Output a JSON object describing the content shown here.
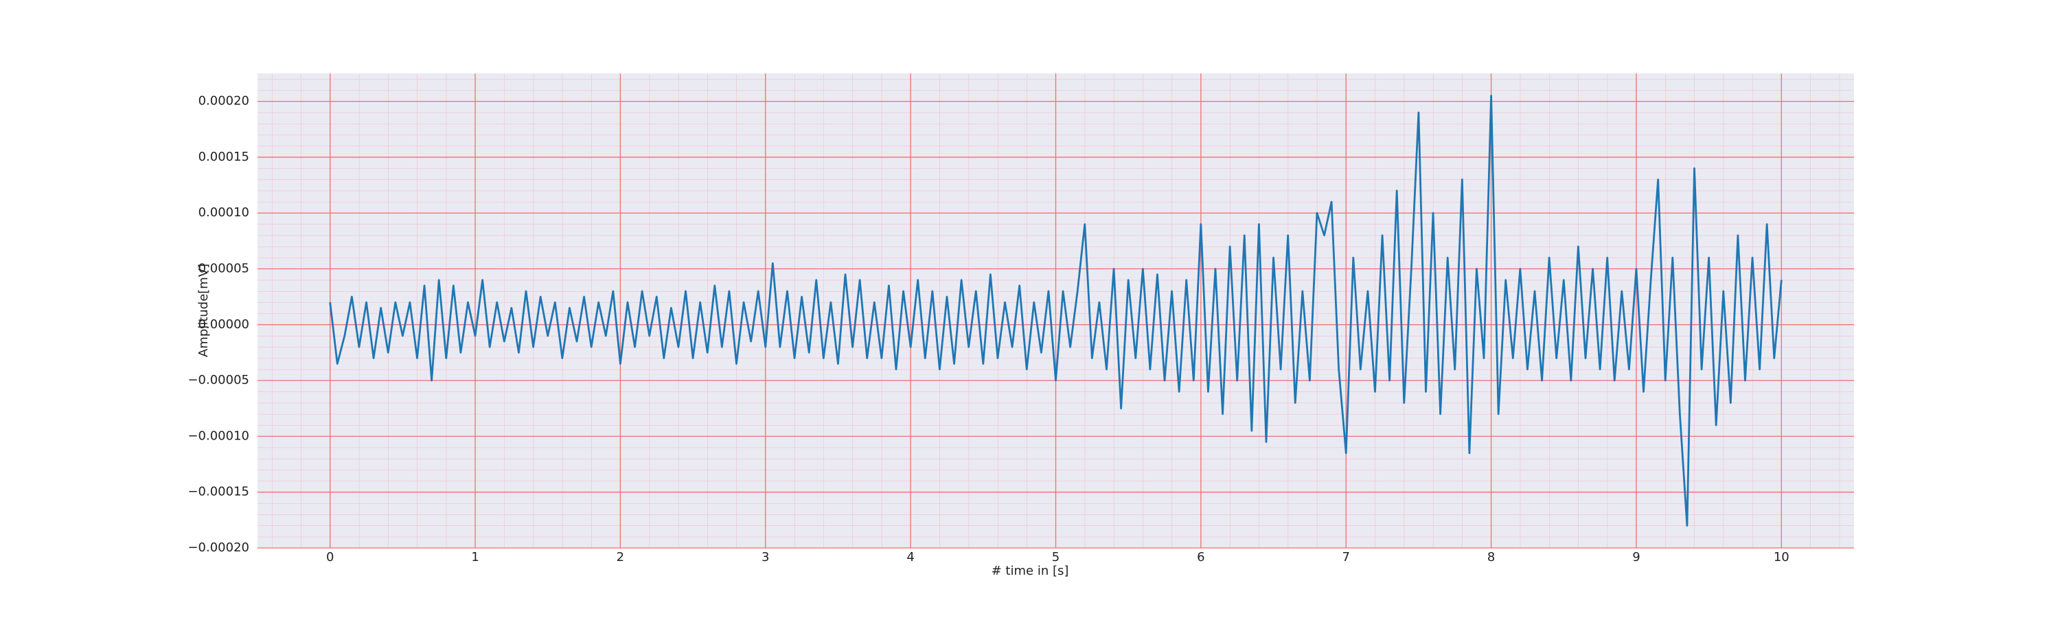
{
  "chart_data": {
    "type": "line",
    "xlabel": "# time in [s]",
    "ylabel": "Amplitude[mV]",
    "color": "#1f77b4",
    "grid": true,
    "minor_grid": true,
    "xlim": [
      -0.5,
      10.5
    ],
    "xticks": [
      0,
      1,
      2,
      3,
      4,
      5,
      6,
      7,
      8,
      9,
      10
    ],
    "ylim": [
      -0.0002,
      0.000225
    ],
    "yticks": [
      {
        "value": -0.0002,
        "label": "−0.00020"
      },
      {
        "value": -0.00015,
        "label": "−0.00015"
      },
      {
        "value": -0.0001,
        "label": "−0.00010"
      },
      {
        "value": -5e-05,
        "label": "−0.00005"
      },
      {
        "value": 0,
        "label": "0.00000"
      },
      {
        "value": 5e-05,
        "label": "0.00005"
      },
      {
        "value": 0.0001,
        "label": "0.00010"
      },
      {
        "value": 0.00015,
        "label": "0.00015"
      },
      {
        "value": 0.0002,
        "label": "0.00020"
      }
    ],
    "x": [
      0,
      0.05,
      0.1,
      0.15,
      0.2,
      0.25,
      0.3,
      0.35,
      0.4,
      0.45,
      0.5,
      0.55,
      0.6,
      0.65,
      0.7,
      0.75,
      0.8,
      0.85,
      0.9,
      0.95,
      1,
      1.05,
      1.1,
      1.15,
      1.2,
      1.25,
      1.3,
      1.35,
      1.4,
      1.45,
      1.5,
      1.55,
      1.6,
      1.65,
      1.7,
      1.75,
      1.8,
      1.85,
      1.9,
      1.95,
      2,
      2.05,
      2.1,
      2.15,
      2.2,
      2.25,
      2.3,
      2.35,
      2.4,
      2.45,
      2.5,
      2.55,
      2.6,
      2.65,
      2.7,
      2.75,
      2.8,
      2.85,
      2.9,
      2.95,
      3,
      3.05,
      3.1,
      3.15,
      3.2,
      3.25,
      3.3,
      3.35,
      3.4,
      3.45,
      3.5,
      3.55,
      3.6,
      3.65,
      3.7,
      3.75,
      3.8,
      3.85,
      3.9,
      3.95,
      4,
      4.05,
      4.1,
      4.15,
      4.2,
      4.25,
      4.3,
      4.35,
      4.4,
      4.45,
      4.5,
      4.55,
      4.6,
      4.65,
      4.7,
      4.75,
      4.8,
      4.85,
      4.9,
      4.95,
      5,
      5.05,
      5.1,
      5.15,
      5.2,
      5.25,
      5.3,
      5.35,
      5.4,
      5.45,
      5.5,
      5.55,
      5.6,
      5.65,
      5.7,
      5.75,
      5.8,
      5.85,
      5.9,
      5.95,
      6,
      6.05,
      6.1,
      6.15,
      6.2,
      6.25,
      6.3,
      6.35,
      6.4,
      6.45,
      6.5,
      6.55,
      6.6,
      6.65,
      6.7,
      6.75,
      6.8,
      6.85,
      6.9,
      6.95,
      7,
      7.05,
      7.1,
      7.15,
      7.2,
      7.25,
      7.3,
      7.35,
      7.4,
      7.45,
      7.5,
      7.55,
      7.6,
      7.65,
      7.7,
      7.75,
      7.8,
      7.85,
      7.9,
      7.95,
      8,
      8.05,
      8.1,
      8.15,
      8.2,
      8.25,
      8.3,
      8.35,
      8.4,
      8.45,
      8.5,
      8.55,
      8.6,
      8.65,
      8.7,
      8.75,
      8.8,
      8.85,
      8.9,
      8.95,
      9,
      9.05,
      9.1,
      9.15,
      9.2,
      9.25,
      9.3,
      9.35,
      9.4,
      9.45,
      9.5,
      9.55,
      9.6,
      9.65,
      9.7,
      9.75,
      9.8,
      9.85,
      9.9,
      9.95,
      10
    ],
    "values": [
      2e-05,
      -3.5e-05,
      -1e-05,
      2.5e-05,
      -2e-05,
      2e-05,
      -3e-05,
      1.5e-05,
      -2.5e-05,
      2e-05,
      -1e-05,
      2e-05,
      -3e-05,
      3.5e-05,
      -5e-05,
      4e-05,
      -3e-05,
      3.5e-05,
      -2.5e-05,
      2e-05,
      -1e-05,
      4e-05,
      -2e-05,
      2e-05,
      -1.5e-05,
      1.5e-05,
      -2.5e-05,
      3e-05,
      -2e-05,
      2.5e-05,
      -1e-05,
      2e-05,
      -3e-05,
      1.5e-05,
      -1.5e-05,
      2.5e-05,
      -2e-05,
      2e-05,
      -1e-05,
      3e-05,
      -3.5e-05,
      2e-05,
      -2e-05,
      3e-05,
      -1e-05,
      2.5e-05,
      -3e-05,
      1.5e-05,
      -2e-05,
      3e-05,
      -3e-05,
      2e-05,
      -2.5e-05,
      3.5e-05,
      -2e-05,
      3e-05,
      -3.5e-05,
      2e-05,
      -1.5e-05,
      3e-05,
      -2e-05,
      5.5e-05,
      -2e-05,
      3e-05,
      -3e-05,
      2.5e-05,
      -2.5e-05,
      4e-05,
      -3e-05,
      2e-05,
      -3.5e-05,
      4.5e-05,
      -2e-05,
      4e-05,
      -3e-05,
      2e-05,
      -3e-05,
      3.5e-05,
      -4e-05,
      3e-05,
      -2e-05,
      4e-05,
      -3e-05,
      3e-05,
      -4e-05,
      2.5e-05,
      -3.5e-05,
      4e-05,
      -2e-05,
      3e-05,
      -3.5e-05,
      4.5e-05,
      -3e-05,
      2e-05,
      -2e-05,
      3.5e-05,
      -4e-05,
      2e-05,
      -2.5e-05,
      3e-05,
      -5e-05,
      3e-05,
      -2e-05,
      3e-05,
      9e-05,
      -3e-05,
      2e-05,
      -4e-05,
      5e-05,
      -7.5e-05,
      4e-05,
      -3e-05,
      5e-05,
      -4e-05,
      4.5e-05,
      -5e-05,
      3e-05,
      -6e-05,
      4e-05,
      -5e-05,
      9e-05,
      -6e-05,
      5e-05,
      -8e-05,
      7e-05,
      -5e-05,
      8e-05,
      -9.5e-05,
      9e-05,
      -0.000105,
      6e-05,
      -4e-05,
      8e-05,
      -7e-05,
      3e-05,
      -5e-05,
      0.0001,
      8e-05,
      0.00011,
      -4e-05,
      -0.000115,
      6e-05,
      -4e-05,
      3e-05,
      -6e-05,
      8e-05,
      -5e-05,
      0.00012,
      -7e-05,
      5e-05,
      0.00019,
      -6e-05,
      0.0001,
      -8e-05,
      6e-05,
      -4e-05,
      0.00013,
      -0.000115,
      5e-05,
      -3e-05,
      0.000205,
      -8e-05,
      4e-05,
      -3e-05,
      5e-05,
      -4e-05,
      3e-05,
      -5e-05,
      6e-05,
      -3e-05,
      4e-05,
      -5e-05,
      7e-05,
      -3e-05,
      5e-05,
      -4e-05,
      6e-05,
      -5e-05,
      3e-05,
      -4e-05,
      5e-05,
      -6e-05,
      4e-05,
      0.00013,
      -5e-05,
      6e-05,
      -8e-05,
      -0.00018,
      0.00014,
      -4e-05,
      6e-05,
      -9e-05,
      3e-05,
      -7e-05,
      8e-05,
      -5e-05,
      6e-05,
      -4e-05,
      9e-05,
      -3e-05,
      4e-05
    ]
  }
}
